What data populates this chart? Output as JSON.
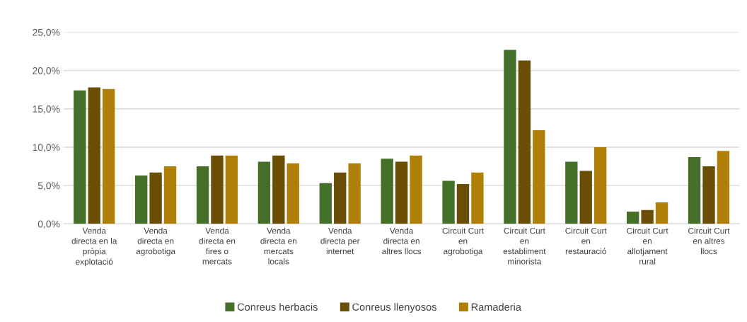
{
  "chart_data": {
    "type": "bar",
    "categories": [
      "Venda directa en la pròpia explotació",
      "Venda directa en agrobotiga",
      "Venda directa en fires o mercats",
      "Venda directa en mercats locals",
      "Venda directa per internet",
      "Venda directa en altres llocs",
      "Circuit Curt en agrobotiga",
      "Circuit Curt en establiment minorista",
      "Circuit Curt en restauració",
      "Circuit Curt en allotjament rural",
      "Circuit Curt en altres llocs"
    ],
    "series": [
      {
        "name": "Conreus herbacis",
        "color": "#44702a",
        "values": [
          17.4,
          6.3,
          7.5,
          8.1,
          5.3,
          8.5,
          5.6,
          22.7,
          8.1,
          1.6,
          8.7
        ]
      },
      {
        "name": "Conreus llenyosos",
        "color": "#6a4e05",
        "values": [
          17.8,
          6.7,
          8.9,
          8.9,
          6.7,
          8.1,
          5.2,
          21.3,
          6.9,
          1.8,
          7.5
        ]
      },
      {
        "name": "Ramaderia",
        "color": "#b07f08",
        "values": [
          17.6,
          7.5,
          8.9,
          7.9,
          7.9,
          8.9,
          6.7,
          12.2,
          10.0,
          2.8,
          9.5
        ]
      }
    ],
    "ylim": [
      0,
      25
    ],
    "yticks": [
      {
        "value": 0,
        "label": "0,0%"
      },
      {
        "value": 5,
        "label": "5,0%"
      },
      {
        "value": 10,
        "label": "10,0%"
      },
      {
        "value": 15,
        "label": "15,0%"
      },
      {
        "value": 20,
        "label": "20,0%"
      },
      {
        "value": 25,
        "label": "25,0%"
      }
    ],
    "grid": "y",
    "legend": "bottom"
  }
}
